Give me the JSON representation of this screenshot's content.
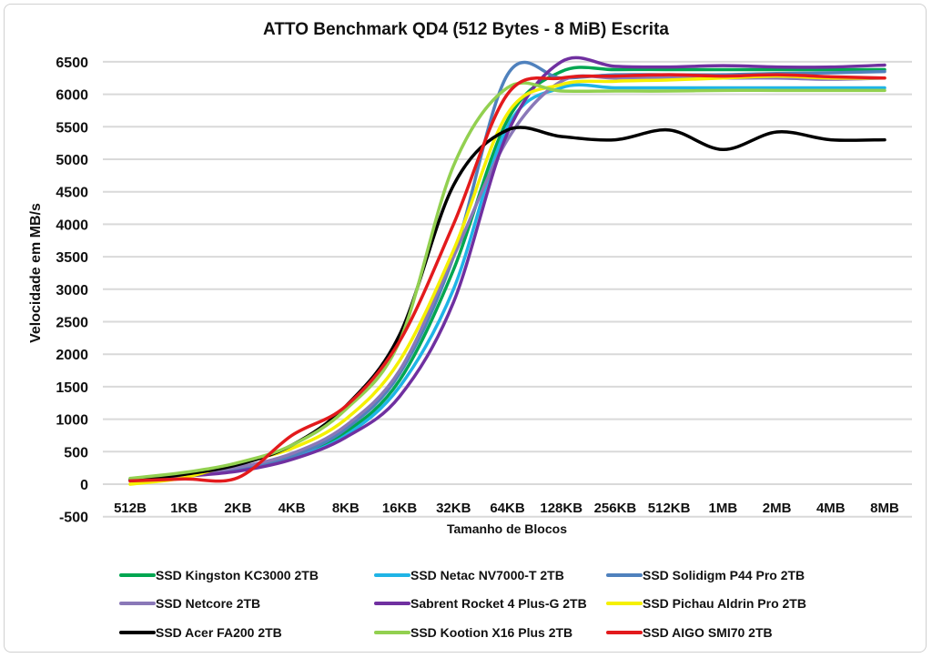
{
  "chart_data": {
    "type": "line",
    "title": "ATTO Benchmark QD4 (512 Bytes - 8 MiB) Escrita",
    "xlabel": "Tamanho de Blocos",
    "ylabel": "Velocidade em MB/s",
    "ylim": [
      -500,
      6500
    ],
    "yticks": [
      -500,
      0,
      500,
      1000,
      1500,
      2000,
      2500,
      3000,
      3500,
      4000,
      4500,
      5000,
      5500,
      6000,
      6500
    ],
    "grid": true,
    "legend_position": "bottom",
    "categories": [
      "512B",
      "1KB",
      "2KB",
      "4KB",
      "8KB",
      "16KB",
      "32KB",
      "64KB",
      "128KB",
      "256KB",
      "512KB",
      "1MB",
      "2MB",
      "4MB",
      "8MB"
    ],
    "series": [
      {
        "name": "SSD Kingston KC3000 2TB",
        "color": "#00a651",
        "values": [
          80,
          150,
          260,
          450,
          800,
          1600,
          3300,
          5600,
          6350,
          6380,
          6380,
          6380,
          6380,
          6380,
          6380
        ]
      },
      {
        "name": "SSD Netac NV7000-T 2TB",
        "color": "#1fb4e6",
        "values": [
          60,
          130,
          230,
          400,
          750,
          1500,
          3000,
          5500,
          6100,
          6100,
          6100,
          6100,
          6100,
          6100,
          6100
        ]
      },
      {
        "name": "SSD Solidigm P44 Pro 2TB",
        "color": "#4f81bd",
        "values": [
          70,
          140,
          250,
          430,
          850,
          1700,
          3500,
          6300,
          6250,
          6300,
          6300,
          6300,
          6320,
          6330,
          6350
        ]
      },
      {
        "name": "SSD Netcore 2TB",
        "color": "#8a78b8",
        "values": [
          70,
          150,
          260,
          470,
          900,
          1750,
          3500,
          5300,
          6200,
          6250,
          6250,
          6250,
          6250,
          6230,
          6250
        ]
      },
      {
        "name": "Sabrent Rocket 4 Plus-G 2TB",
        "color": "#7030a0",
        "values": [
          50,
          120,
          200,
          380,
          720,
          1350,
          2800,
          5400,
          6500,
          6430,
          6420,
          6440,
          6420,
          6420,
          6450
        ]
      },
      {
        "name": "SSD Pichau Aldrin Pro 2TB",
        "color": "#f5f000",
        "values": [
          0,
          100,
          330,
          550,
          1000,
          1900,
          3600,
          5700,
          6150,
          6200,
          6220,
          6250,
          6280,
          6250,
          6250
        ]
      },
      {
        "name": "SSD Acer FA200 2TB",
        "color": "#000000",
        "values": [
          60,
          150,
          300,
          600,
          1200,
          2300,
          4600,
          5450,
          5350,
          5300,
          5450,
          5150,
          5420,
          5300,
          5300
        ]
      },
      {
        "name": "SSD Kootion X16 Plus 2TB",
        "color": "#92d050",
        "values": [
          90,
          180,
          330,
          600,
          1150,
          2200,
          4900,
          6100,
          6050,
          6050,
          6050,
          6060,
          6060,
          6060,
          6060
        ]
      },
      {
        "name": "SSD AIGO SMI70 2TB",
        "color": "#e31a1c",
        "values": [
          50,
          80,
          100,
          750,
          1200,
          2200,
          4000,
          6000,
          6250,
          6280,
          6300,
          6280,
          6300,
          6270,
          6250
        ]
      }
    ]
  }
}
